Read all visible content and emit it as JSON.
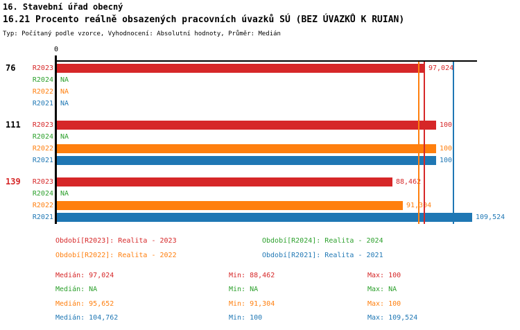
{
  "header": {
    "title_line1": "16. Stavební úřad obecný",
    "title_line2": "16.21 Procento reálně obsazených pracovních úvazků SÚ (BEZ ÚVAZKŮ K RUIAN)",
    "subtitle": "Typ: Počítaný podle vzorce, Vyhodnocení: Absolutní hodnoty, Průměr: Medián"
  },
  "colors": {
    "R2023": "#d62728",
    "R2024": "#2ca02c",
    "R2022": "#ff7f0e",
    "R2021": "#1f77b4",
    "axis": "#000000",
    "group_label_default": "#000000",
    "group_label_highlight": "#d62728"
  },
  "chart_data": {
    "type": "bar",
    "orientation": "horizontal",
    "x_origin_label": "0",
    "xlim": [
      0,
      111
    ],
    "grid": false,
    "series": [
      "R2023",
      "R2024",
      "R2022",
      "R2021"
    ],
    "groups": [
      {
        "label": "76",
        "highlighted": false,
        "bars": [
          {
            "series": "R2023",
            "value": 97.024,
            "display": "97,024"
          },
          {
            "series": "R2024",
            "value": null,
            "display": "NA"
          },
          {
            "series": "R2022",
            "value": null,
            "display": "NA"
          },
          {
            "series": "R2021",
            "value": null,
            "display": "NA"
          }
        ]
      },
      {
        "label": "111",
        "highlighted": false,
        "bars": [
          {
            "series": "R2023",
            "value": 100,
            "display": "100"
          },
          {
            "series": "R2024",
            "value": null,
            "display": "NA"
          },
          {
            "series": "R2022",
            "value": 100,
            "display": "100"
          },
          {
            "series": "R2021",
            "value": 100,
            "display": "100"
          }
        ]
      },
      {
        "label": "139",
        "highlighted": true,
        "bars": [
          {
            "series": "R2023",
            "value": 88.462,
            "display": "88,462"
          },
          {
            "series": "R2024",
            "value": null,
            "display": "NA"
          },
          {
            "series": "R2022",
            "value": 91.304,
            "display": "91,304"
          },
          {
            "series": "R2021",
            "value": 109.524,
            "display": "109,524"
          }
        ]
      }
    ],
    "median_lines": [
      {
        "series": "R2022",
        "value": 95.652
      },
      {
        "series": "R2023",
        "value": 97.024
      },
      {
        "series": "R2021",
        "value": 104.762
      }
    ]
  },
  "legend": {
    "items": [
      {
        "series": "R2023",
        "label": "Období[R2023]: Realita - 2023"
      },
      {
        "series": "R2024",
        "label": "Období[R2024]: Realita - 2024"
      },
      {
        "series": "R2022",
        "label": "Období[R2022]: Realita - 2022"
      },
      {
        "series": "R2021",
        "label": "Období[R2021]: Realita - 2021"
      }
    ]
  },
  "stats": {
    "median_label": "Medián",
    "min_label": "Min",
    "max_label": "Max",
    "rows": [
      {
        "series": "R2023",
        "median": "97,024",
        "min": "88,462",
        "max": "100"
      },
      {
        "series": "R2024",
        "median": "NA",
        "min": "NA",
        "max": "NA"
      },
      {
        "series": "R2022",
        "median": "95,652",
        "min": "91,304",
        "max": "100"
      },
      {
        "series": "R2021",
        "median": "104,762",
        "min": "100",
        "max": "109,524"
      }
    ]
  }
}
